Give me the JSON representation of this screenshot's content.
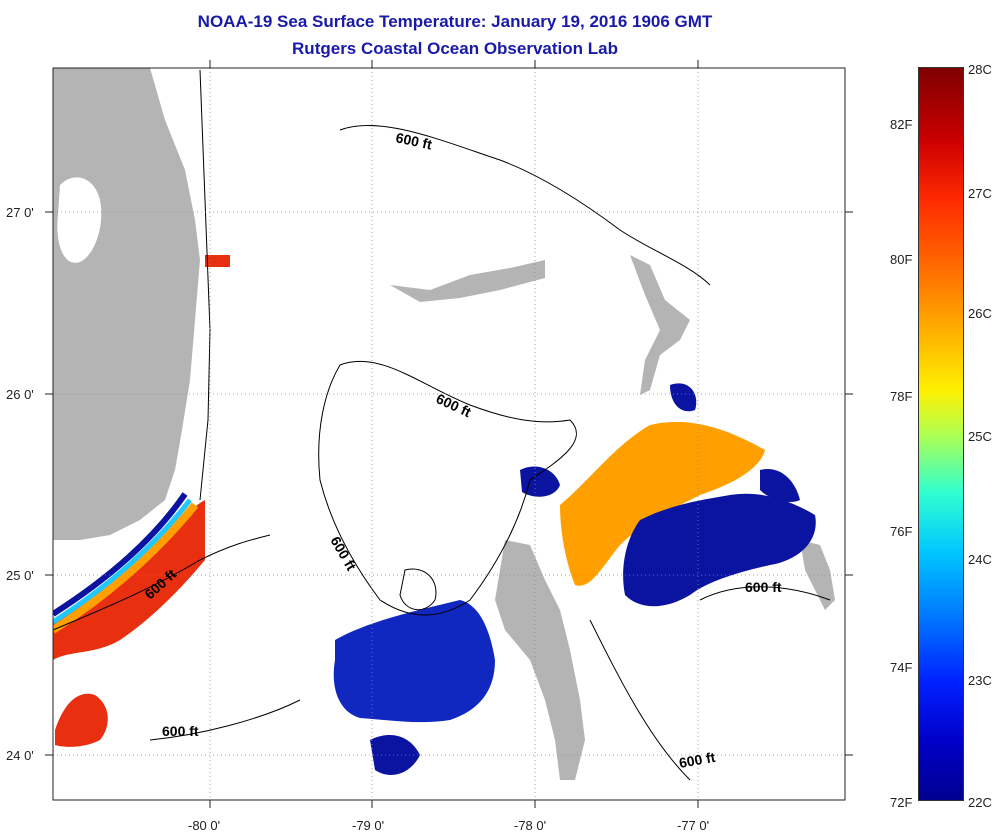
{
  "title": "NOAA-19 Sea Surface Temperature:  January 19, 2016 1906 GMT",
  "subtitle": "Rutgers Coastal Ocean Observation Lab",
  "lat_labels": [
    "27 0'",
    "26 0'",
    "25 0'",
    "24 0'"
  ],
  "lon_labels": [
    "-80 0'",
    "-79 0'",
    "-78 0'",
    "-77 0'"
  ],
  "contour_label": "600 ft",
  "colorbar": {
    "celsius": [
      "28C",
      "27C",
      "26C",
      "25C",
      "24C",
      "23C",
      "22C"
    ],
    "fahrenheit": [
      "82F",
      "80F",
      "78F",
      "76F",
      "74F",
      "72F"
    ]
  },
  "colors": {
    "land": "#b4b4b4",
    "title": "#1a1aa8",
    "warm": "#e83010",
    "mid": "#ffa000",
    "cold": "#0a14a0"
  }
}
